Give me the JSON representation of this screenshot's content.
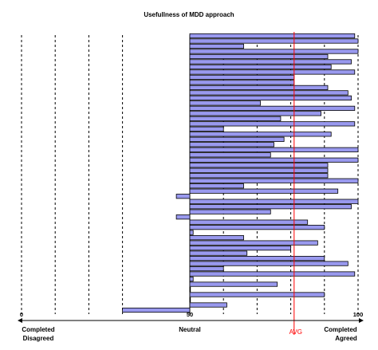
{
  "chart_data": {
    "type": "bar",
    "orientation": "horizontal",
    "title": "Usefullness of MDD approach",
    "xlim": [
      0,
      100
    ],
    "x_ticks": [
      0,
      50,
      100
    ],
    "x_tick_labels": [
      "0",
      "50",
      "100"
    ],
    "dashed_gridlines_at": [
      0,
      10,
      20,
      30,
      60,
      70,
      80,
      90,
      100
    ],
    "baseline": 50,
    "values": [
      99,
      100,
      66,
      100,
      91,
      98,
      92,
      99,
      81,
      81,
      91,
      97,
      98,
      71,
      99,
      89,
      77,
      99,
      60,
      92,
      78,
      75,
      100,
      74,
      100,
      91,
      91,
      91,
      100,
      66,
      94,
      46,
      100,
      98,
      74,
      46,
      85,
      90,
      51,
      66,
      88,
      80,
      67,
      90,
      97,
      60,
      99,
      51,
      76,
      50,
      90,
      50,
      61,
      30
    ],
    "avg": 81,
    "avg_label": "AVG",
    "bar_color": "#9999ee",
    "avg_color": "#ff0000",
    "axis_labels": {
      "left": "Completed Disagreed",
      "center": "Neutral",
      "right": "Completed Agreed"
    }
  }
}
